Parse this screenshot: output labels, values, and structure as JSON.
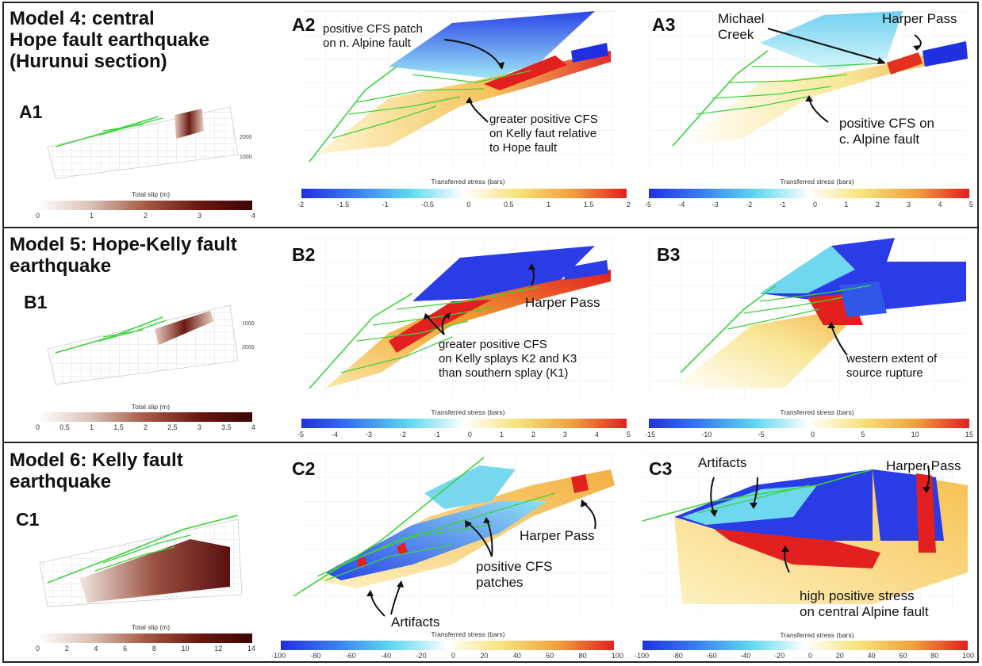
{
  "models": [
    {
      "title_lines": [
        "Model 4: central",
        "Hope fault earthquake",
        "(Hurunui section)"
      ],
      "slip_panel": {
        "label": "A1",
        "axis_title": "Total slip (m)",
        "colorbar_ticks": [
          "0",
          "1",
          "2",
          "3",
          "4"
        ]
      },
      "stress_panels": [
        {
          "label": "A2",
          "axis_title": "Transferred stress (bars)",
          "colorbar_ticks": [
            "-2",
            "-1.5",
            "-1",
            "-0.5",
            "0",
            "0.5",
            "1",
            "1.5",
            "2"
          ],
          "annotations": [
            [
              "positive CFS patch",
              "on n. Alpine fault"
            ],
            [
              "greater positive CFS",
              "on Kelly faut relative",
              "to Hope fault"
            ]
          ]
        },
        {
          "label": "A3",
          "axis_title": "Transferred stress (bars)",
          "colorbar_ticks": [
            "-5",
            "-4",
            "-3",
            "-2",
            "-1",
            "0",
            "1",
            "2",
            "3",
            "4",
            "5"
          ],
          "annotations": [
            [
              "Michael",
              "Creek"
            ],
            [
              "Harper Pass"
            ],
            [
              "positive CFS on",
              "c. Alpine fault"
            ]
          ]
        }
      ]
    },
    {
      "title_lines": [
        "Model 5: Hope-Kelly fault",
        "earthquake"
      ],
      "slip_panel": {
        "label": "B1",
        "axis_title": "Total slip (m)",
        "colorbar_ticks": [
          "0",
          "0.5",
          "1",
          "1.5",
          "2",
          "2.5",
          "3",
          "3.5",
          "4"
        ]
      },
      "stress_panels": [
        {
          "label": "B2",
          "axis_title": "Transferred stress (bars)",
          "colorbar_ticks": [
            "-5",
            "-4",
            "-3",
            "-2",
            "-1",
            "0",
            "1",
            "2",
            "3",
            "4",
            "5"
          ],
          "annotations": [
            [
              "Harper Pass"
            ],
            [
              "greater positive CFS",
              "on Kelly splays K2 and K3",
              "than southern splay (K1)"
            ]
          ]
        },
        {
          "label": "B3",
          "axis_title": "Transferred stress (bars)",
          "colorbar_ticks": [
            "-15",
            "-10",
            "-5",
            "0",
            "5",
            "10",
            "15"
          ],
          "annotations": [
            [
              "western extent of",
              "source rupture"
            ]
          ]
        }
      ]
    },
    {
      "title_lines": [
        "Model 6: Kelly fault",
        "earthquake"
      ],
      "slip_panel": {
        "label": "C1",
        "axis_title": "Total slip (m)",
        "colorbar_ticks": [
          "0",
          "2",
          "4",
          "6",
          "8",
          "10",
          "12",
          "14"
        ]
      },
      "stress_panels": [
        {
          "label": "C2",
          "axis_title": "Transferred stress (bars)",
          "colorbar_ticks": [
            "-100",
            "-80",
            "-60",
            "-40",
            "-20",
            "0",
            "20",
            "40",
            "60",
            "80",
            "100"
          ],
          "annotations": [
            [
              "Harper Pass"
            ],
            [
              "positive CFS",
              "patches"
            ],
            [
              "Artifacts"
            ]
          ]
        },
        {
          "label": "C3",
          "axis_title": "Transferred stress (bars)",
          "colorbar_ticks": [
            "-100",
            "-80",
            "-60",
            "-40",
            "-20",
            "0",
            "20",
            "40",
            "60",
            "80",
            "100"
          ],
          "annotations": [
            [
              "Artifacts"
            ],
            [
              "Harper Pass"
            ],
            [
              "high positive stress",
              "on central Alpine fault"
            ]
          ]
        }
      ]
    }
  ],
  "colors": {
    "slip_colormap": [
      "#ffffff",
      "#e8d9d0",
      "#b47a66",
      "#7a2418",
      "#3d0505"
    ],
    "stress_colormap": [
      "#2030e0",
      "#3a7ef0",
      "#60d8f0",
      "#ffffff",
      "#f7e27a",
      "#f0a040",
      "#e02020"
    ],
    "fault_trace": "#3cd23c",
    "frame": "#222222"
  }
}
